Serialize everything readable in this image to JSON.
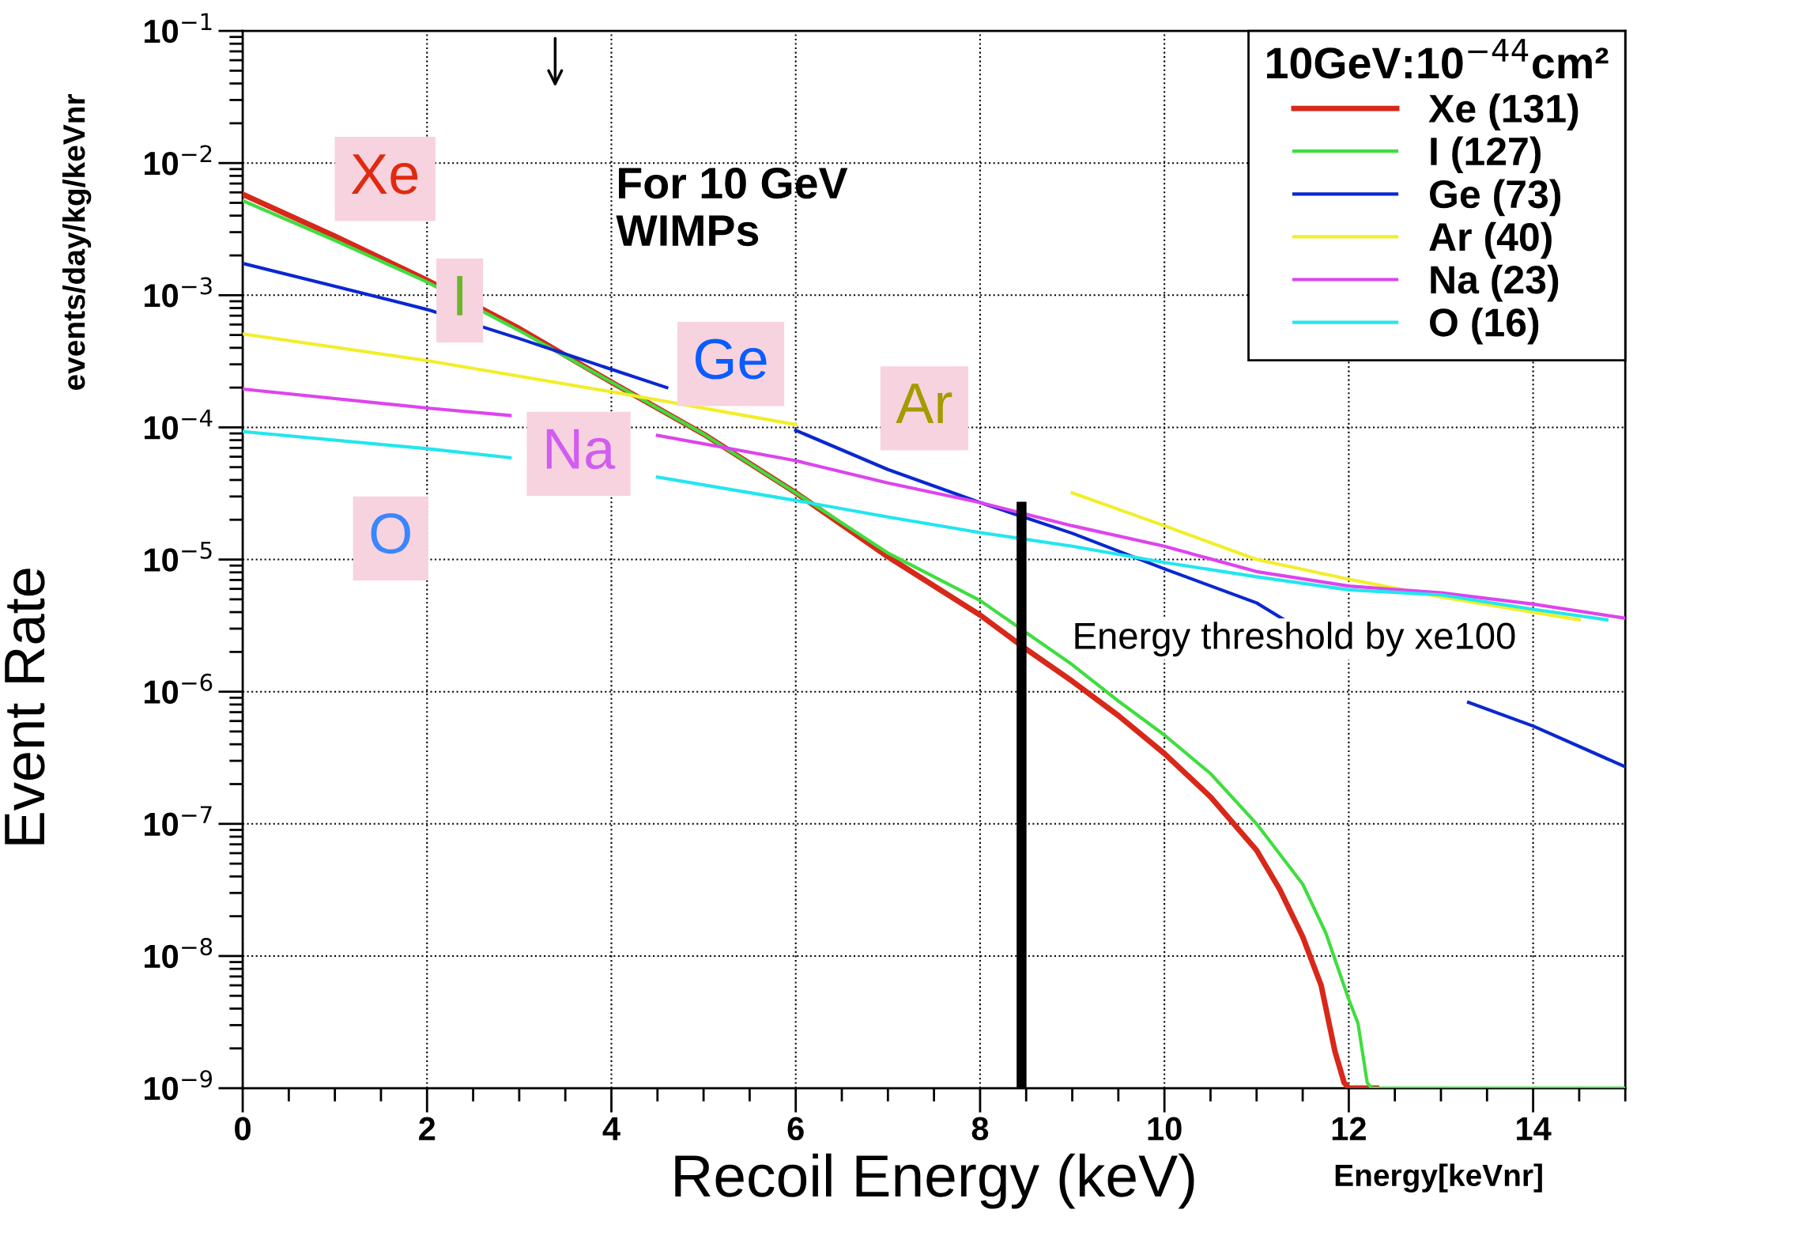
{
  "chart_data": {
    "type": "line",
    "xlabel": "Recoil Energy (keV)",
    "ylabel": "Event Rate",
    "legend_title": "10GeV:10$^{−44}$cm²",
    "series": [
      {
        "name": "Xe (131)",
        "color": "#d8281a",
        "x": [
          0,
          1,
          2,
          3,
          4,
          5,
          6,
          7,
          8,
          8.5,
          9,
          9.5,
          10,
          10.5,
          11,
          11.25,
          11.5,
          11.7,
          11.85,
          11.95,
          12,
          12.3
        ],
        "values": [
          0.0058,
          0.0028,
          0.0013,
          0.00056,
          0.00022,
          8.9e-05,
          3.2e-05,
          1.05e-05,
          3.8e-06,
          2.1e-06,
          1.2e-06,
          6.6e-07,
          3.4e-07,
          1.6e-07,
          6.3e-08,
          3.2e-08,
          1.4e-08,
          6e-09,
          1.9e-09,
          1.1e-09,
          1e-09,
          1e-09
        ]
      },
      {
        "name": "I (127)",
        "color": "#3fdd3f",
        "x": [
          0,
          1,
          2,
          3,
          4,
          5,
          6,
          7,
          8,
          8.5,
          9,
          9.5,
          10,
          10.5,
          11,
          11.5,
          11.75,
          12,
          12.1,
          12.2,
          12.25,
          15
        ],
        "values": [
          0.0052,
          0.0026,
          0.00126,
          0.00054,
          0.00022,
          8.9e-05,
          3.2e-05,
          1.12e-05,
          4.9e-06,
          2.8e-06,
          1.6e-06,
          8.5e-07,
          4.7e-07,
          2.4e-07,
          1e-07,
          3.5e-08,
          1.5e-08,
          4.7e-09,
          3.1e-09,
          1.1e-09,
          1e-09,
          1e-09
        ]
      },
      {
        "name": "Ge (73)",
        "color": "#0a28d0",
        "x": [
          0,
          1,
          2,
          3,
          4,
          4.6,
          5.3,
          6,
          7,
          8,
          9,
          10,
          11,
          11.3,
          12,
          13.3,
          14,
          15
        ],
        "values": [
          0.00174,
          0.00117,
          0.00078,
          0.00047,
          0.000275,
          0.0002,
          null,
          9.5e-05,
          4.8e-05,
          2.7e-05,
          1.58e-05,
          8.5e-06,
          4.7e-06,
          3.5e-06,
          null,
          8.3e-07,
          5.5e-07,
          2.7e-07
        ]
      },
      {
        "name": "Ar (40)",
        "color": "#f2ee2a",
        "x": [
          0,
          2,
          4,
          6,
          8,
          9,
          10,
          11,
          12,
          13,
          14,
          14.5
        ],
        "values": [
          0.00051,
          0.00032,
          0.000186,
          0.000105,
          null,
          3.2e-05,
          1.8e-05,
          1e-05,
          7.1e-06,
          5.2e-06,
          4e-06,
          3.5e-06
        ]
      },
      {
        "name": "Na (23)",
        "color": "#dd44ee",
        "x": [
          0,
          2,
          2.9,
          3.5,
          4.5,
          6,
          7,
          8,
          9,
          10,
          11,
          12,
          13,
          14,
          15
        ],
        "values": [
          0.000195,
          0.00014,
          0.000123,
          null,
          8.7e-05,
          5.6e-05,
          3.8e-05,
          2.7e-05,
          1.8e-05,
          1.26e-05,
          8.1e-06,
          6.3e-06,
          5.6e-06,
          4.6e-06,
          3.6e-06
        ]
      },
      {
        "name": "O (16)",
        "color": "#22e6ee",
        "x": [
          0,
          2,
          2.9,
          3.5,
          4.5,
          6,
          7,
          8,
          9,
          10,
          11,
          12,
          13,
          14,
          14.8
        ],
        "values": [
          9.3e-05,
          6.9e-05,
          5.9e-05,
          null,
          4.2e-05,
          2.8e-05,
          2.1e-05,
          1.6e-05,
          1.26e-05,
          9.5e-06,
          7.4e-06,
          5.9e-06,
          5.4e-06,
          4.2e-06,
          3.5e-06
        ]
      }
    ],
    "annotations": [
      "Xe",
      "I",
      "Ge",
      "Ar",
      "Na",
      "O",
      "For 10 GeV\nWIMPs",
      "events/day/kg/keVnr",
      "Energy[keVnr]"
    ],
    "ref_lines": [
      {
        "axis": "x",
        "value": 8.45,
        "label": "Energy threshold by xe100",
        "color": "#000000"
      }
    ],
    "xlim": [
      0,
      15
    ],
    "xticks": [
      0,
      2,
      4,
      6,
      8,
      10,
      12,
      14
    ],
    "ylim": [
      1e-09,
      0.1
    ],
    "log": "y",
    "yticks": [
      {
        "value": 0.1,
        "label": "10$^{−1}$"
      },
      {
        "value": 0.01,
        "label": "10$^{−2}$"
      },
      {
        "value": 0.001,
        "label": "10$^{−3}$"
      },
      {
        "value": 0.0001,
        "label": "10$^{−4}$"
      },
      {
        "value": 1e-05,
        "label": "10$^{−5}$"
      },
      {
        "value": 1e-06,
        "label": "10$^{−6}$"
      },
      {
        "value": 1e-07,
        "label": "10$^{−7}$"
      },
      {
        "value": 1e-08,
        "label": "10$^{−8}$"
      },
      {
        "value": 1e-09,
        "label": "10$^{−9}$"
      }
    ],
    "grid": true,
    "legend": "top right",
    "line_style": "solid",
    "marker": "none"
  }
}
